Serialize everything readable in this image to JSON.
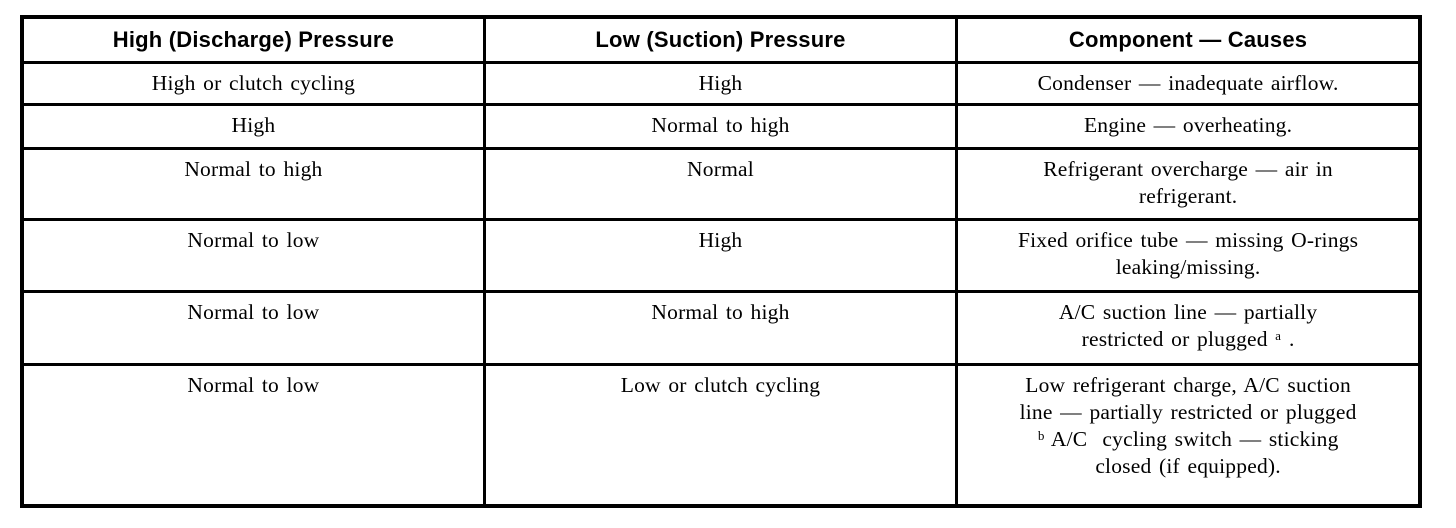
{
  "table": {
    "headers": [
      {
        "label": "High (Discharge) Pressure"
      },
      {
        "label": "Low (Suction) Pressure"
      },
      {
        "label": "Component — Causes"
      }
    ],
    "rows": [
      {
        "high": "High or clutch cycling",
        "low": "High",
        "causes": "Condenser — inadequate airflow."
      },
      {
        "high": "High",
        "low": "Normal to high",
        "causes": "Engine — overheating."
      },
      {
        "high": "Normal to high",
        "low": "Normal",
        "causes": "Refrigerant overcharge — air in\nrefrigerant."
      },
      {
        "high": "Normal to low",
        "low": "High",
        "causes": "Fixed orifice tube — missing O-rings\nleaking/missing."
      },
      {
        "high": "Normal to low",
        "low": "Normal to high",
        "causes": "A/C suction line — partially\nrestricted or plugged ᵃ ."
      },
      {
        "high": "Normal to low",
        "low": "Low or clutch cycling",
        "causes": "Low refrigerant charge, A/C suction\nline — partially restricted or plugged\nᵇ A/C  cycling switch — sticking\nclosed (if equipped)."
      }
    ]
  }
}
